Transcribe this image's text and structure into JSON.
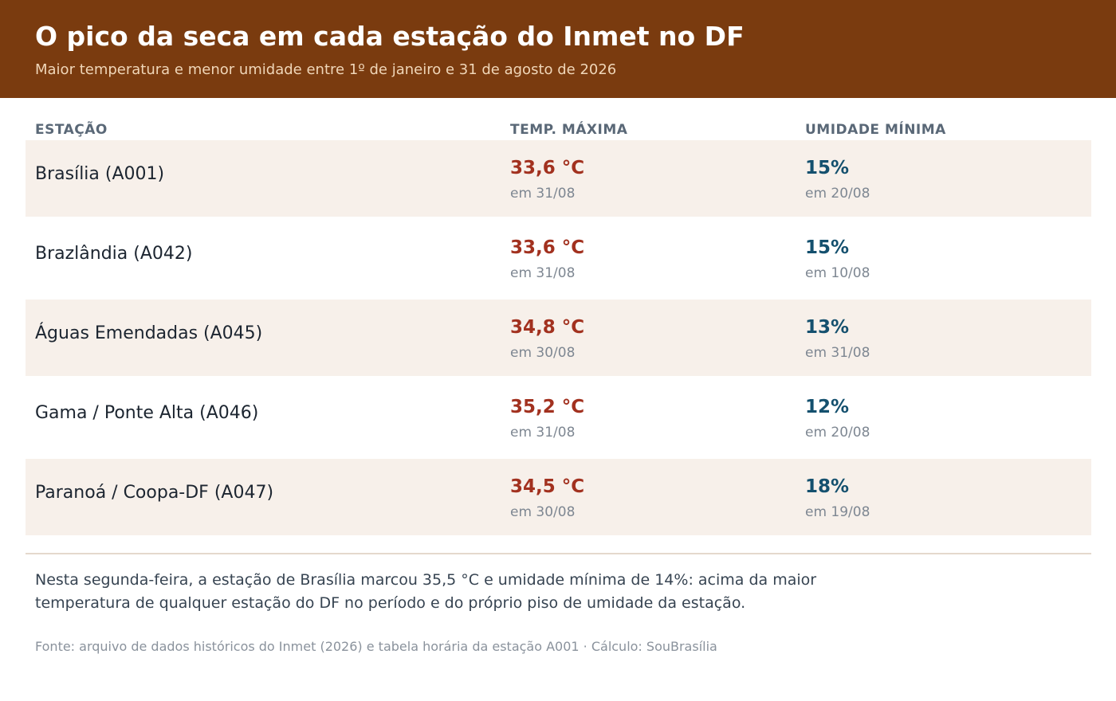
{
  "header": {
    "title": "O pico da seca em cada estação do Inmet no DF",
    "subtitle": "Maior temperatura e menor umidade entre 1º de janeiro e 31 de agosto de 2026"
  },
  "table": {
    "columns": {
      "station": "ESTAÇÃO",
      "temp": "TEMP. MÁXIMA",
      "humidity": "UMIDADE MÍNIMA"
    },
    "rows": [
      {
        "station": "Brasília (A001)",
        "temp": "33,6 °C",
        "temp_date": "em 31/08",
        "humidity": "15%",
        "humidity_date": "em 20/08"
      },
      {
        "station": "Brazlândia (A042)",
        "temp": "33,6 °C",
        "temp_date": "em 31/08",
        "humidity": "15%",
        "humidity_date": "em 10/08"
      },
      {
        "station": "Águas Emendadas (A045)",
        "temp": "34,8 °C",
        "temp_date": "em 30/08",
        "humidity": "13%",
        "humidity_date": "em 31/08"
      },
      {
        "station": "Gama / Ponte Alta (A046)",
        "temp": "35,2 °C",
        "temp_date": "em 31/08",
        "humidity": "12%",
        "humidity_date": "em 20/08"
      },
      {
        "station": "Paranoá / Coopa-DF (A047)",
        "temp": "34,5 °C",
        "temp_date": "em 30/08",
        "humidity": "18%",
        "humidity_date": "em 19/08"
      }
    ]
  },
  "note": "Nesta segunda-feira, a estação de Brasília marcou 35,5 °C e umidade mínima de 14%: acima da maior temperatura de qualquer estação do DF no período e do próprio piso de umidade da estação.",
  "source": "Fonte: arquivo de dados históricos do Inmet (2026) e tabela horária da estação A001  ·  Cálculo: SouBrasília",
  "colors": {
    "header_bg": "#7a3b0f",
    "temp": "#a2311f",
    "humidity": "#14506e",
    "row_shade": "#f7f0ea"
  }
}
